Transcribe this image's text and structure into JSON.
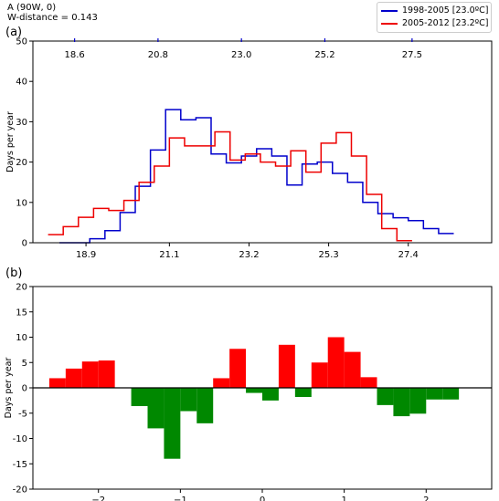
{
  "header": {
    "location": "A (90W, 0)",
    "wdistance": "W-distance = 0.143"
  },
  "legend": {
    "items": [
      {
        "label": "1998-2005 [23.0ºC]",
        "color": "#0000cc"
      },
      {
        "label": "2005-2012 [23.2ºC]",
        "color": "#ee0000"
      }
    ]
  },
  "chart_data": [
    {
      "panel_label": "(a)",
      "type": "line",
      "ylabel": "Days per year",
      "ylim": [
        0,
        50
      ],
      "yticks": [
        0,
        10,
        20,
        30,
        40,
        50
      ],
      "xlim": [
        17.5,
        29.6
      ],
      "xticks_bottom": [
        {
          "label": "18.9",
          "value": 18.9
        },
        {
          "label": "21.1",
          "value": 21.1
        },
        {
          "label": "23.2",
          "value": 23.2
        },
        {
          "label": "25.3",
          "value": 25.3
        },
        {
          "label": "27.4",
          "value": 27.4
        }
      ],
      "xticks_top": [
        {
          "label": "18.6",
          "value": 18.6
        },
        {
          "label": "20.8",
          "value": 20.8
        },
        {
          "label": "23.0",
          "value": 23.0
        },
        {
          "label": "25.2",
          "value": 25.2
        },
        {
          "label": "27.5",
          "value": 27.5
        }
      ],
      "series": [
        {
          "name": "1998-2005 [23.0ºC]",
          "color": "#0000cc",
          "edges": [
            18.2,
            18.6,
            19.0,
            19.4,
            19.8,
            20.2,
            20.6,
            21.0,
            21.4,
            21.8,
            22.2,
            22.6,
            23.0,
            23.4,
            23.8,
            24.2,
            24.6,
            25.0,
            25.4,
            25.8,
            26.2,
            26.6,
            27.0,
            27.4,
            27.8,
            28.2,
            28.6
          ],
          "values": [
            0,
            0,
            1,
            3,
            7.5,
            14,
            23,
            33,
            30.5,
            31,
            22,
            19.8,
            21.5,
            23.3,
            21.5,
            14.3,
            19.5,
            20,
            17.2,
            15,
            10,
            7.2,
            6.2,
            5.5,
            3.5,
            2.3
          ]
        },
        {
          "name": "2005-2012 [23.2ºC]",
          "color": "#ee0000",
          "edges": [
            17.9,
            18.3,
            18.7,
            19.1,
            19.5,
            19.9,
            20.3,
            20.7,
            21.1,
            21.5,
            21.9,
            22.3,
            22.7,
            23.1,
            23.5,
            23.9,
            24.3,
            24.7,
            25.1,
            25.5,
            25.9,
            26.3,
            26.7,
            27.1,
            27.5
          ],
          "values": [
            2,
            4,
            6.3,
            8.5,
            8,
            10.5,
            15,
            19,
            26,
            24,
            24,
            27.5,
            20.5,
            22,
            20,
            19,
            22.8,
            17.5,
            24.7,
            27.3,
            21.5,
            12,
            3.5,
            0.5
          ]
        }
      ]
    },
    {
      "panel_label": "(b)",
      "type": "bar",
      "ylabel": "Days per year",
      "ylim": [
        -20,
        20
      ],
      "yticks": [
        -20,
        -15,
        -10,
        -5,
        0,
        5,
        10,
        15,
        20
      ],
      "xlim": [
        -2.8,
        2.8
      ],
      "xticks": [
        {
          "label": "−2",
          "value": -2
        },
        {
          "label": "−1",
          "value": -1
        },
        {
          "label": "0",
          "value": 0
        },
        {
          "label": "1",
          "value": 1
        },
        {
          "label": "2",
          "value": 2
        }
      ],
      "bar_width": 0.2,
      "positive_color": "#ff0000",
      "negative_color": "#008800",
      "x": [
        -2.5,
        -2.3,
        -2.1,
        -1.9,
        -1.5,
        -1.3,
        -1.1,
        -0.9,
        -0.7,
        -0.5,
        -0.3,
        -0.1,
        0.1,
        0.3,
        0.5,
        0.7,
        0.9,
        1.1,
        1.3,
        1.5,
        1.7,
        1.9,
        2.1,
        2.3
      ],
      "values": [
        1.9,
        3.8,
        5.2,
        5.4,
        -3.6,
        -8,
        -14,
        -4.6,
        -7,
        1.9,
        7.7,
        -1,
        -2.5,
        8.5,
        -1.8,
        5,
        10,
        7.1,
        2.1,
        -3.4,
        -5.6,
        -5.1,
        -2.3,
        -2.3
      ]
    }
  ]
}
